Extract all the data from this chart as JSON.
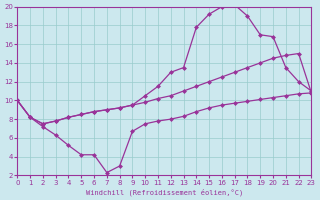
{
  "xlabel": "Windchill (Refroidissement éolien,°C)",
  "x_ticks": [
    0,
    1,
    2,
    3,
    4,
    5,
    6,
    7,
    8,
    9,
    10,
    11,
    12,
    13,
    14,
    15,
    16,
    17,
    18,
    19,
    20,
    21,
    22,
    23
  ],
  "ylim": [
    2,
    20
  ],
  "xlim": [
    0,
    23
  ],
  "yticks": [
    2,
    4,
    6,
    8,
    10,
    12,
    14,
    16,
    18,
    20
  ],
  "bg_color": "#cce8ee",
  "line_color": "#993399",
  "grid_color": "#99cccc",
  "line1_x": [
    0,
    1,
    2,
    3,
    4,
    5,
    6,
    7,
    8,
    9,
    10,
    11,
    12,
    13,
    14,
    15,
    16,
    17,
    18,
    19,
    20,
    21,
    22,
    23
  ],
  "line1_y": [
    10,
    8.2,
    7.2,
    6.3,
    5.2,
    4.2,
    4.2,
    2.3,
    3.0,
    6.7,
    7.5,
    7.8,
    8.0,
    8.3,
    8.8,
    9.2,
    9.5,
    9.7,
    9.9,
    10.1,
    10.3,
    10.5,
    10.7,
    10.8
  ],
  "line2_x": [
    0,
    1,
    2,
    3,
    4,
    5,
    6,
    7,
    8,
    9,
    10,
    11,
    12,
    13,
    14,
    15,
    16,
    17,
    18,
    19,
    20,
    21,
    22,
    23
  ],
  "line2_y": [
    10,
    8.2,
    7.5,
    7.8,
    8.2,
    8.5,
    8.8,
    9.0,
    9.2,
    9.5,
    9.8,
    10.2,
    10.5,
    11.0,
    11.5,
    12.0,
    12.5,
    13.0,
    13.5,
    14.0,
    14.5,
    14.8,
    15.0,
    10.8
  ],
  "line3_x": [
    0,
    1,
    2,
    3,
    4,
    5,
    6,
    7,
    8,
    9,
    10,
    11,
    12,
    13,
    14,
    15,
    16,
    17,
    18,
    19,
    20,
    21,
    22,
    23
  ],
  "line3_y": [
    10,
    8.2,
    7.5,
    7.8,
    8.2,
    8.5,
    8.8,
    9.0,
    9.2,
    9.5,
    10.5,
    11.5,
    13.0,
    13.5,
    17.8,
    19.2,
    20.0,
    20.2,
    19.0,
    17.0,
    16.8,
    13.5,
    12.0,
    11.0
  ]
}
